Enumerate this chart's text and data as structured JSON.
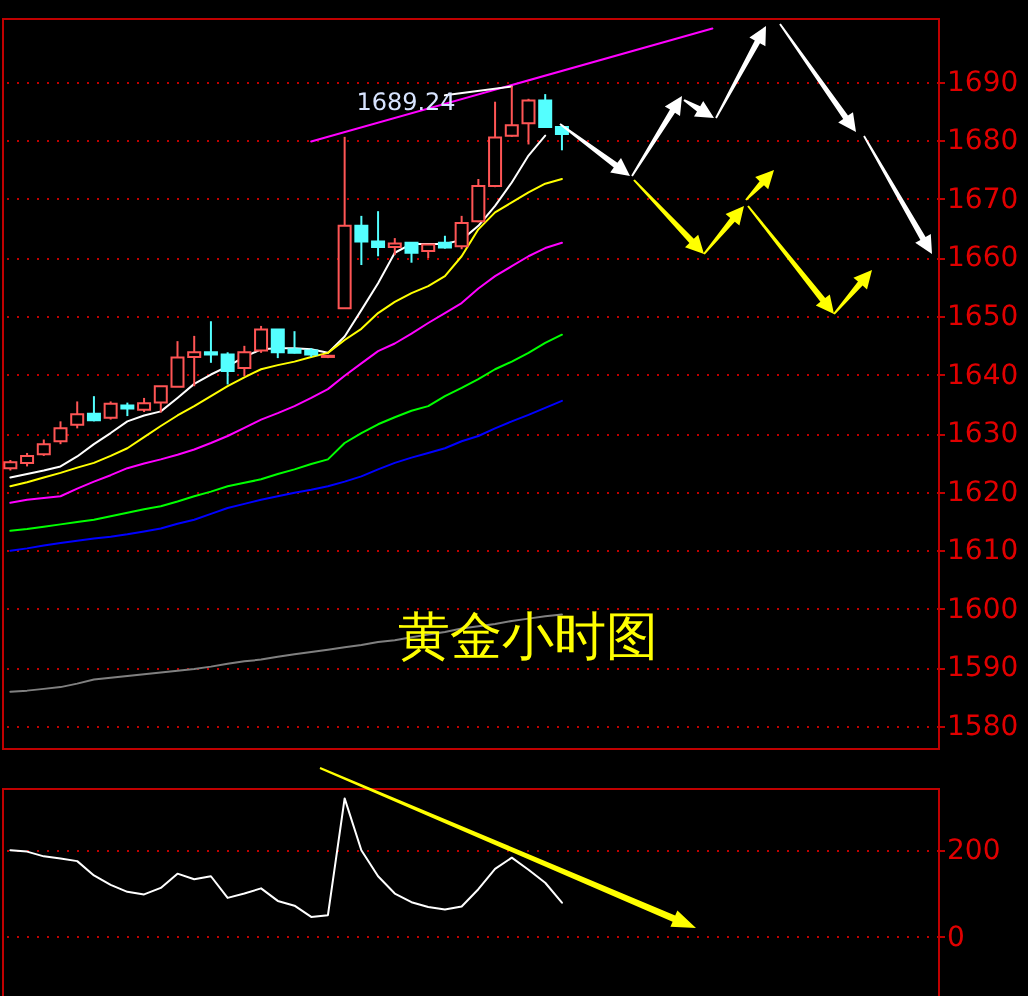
{
  "chart_data": [
    {
      "type": "candlestick",
      "title": "黄金小时图",
      "annotations": [
        "1689.24"
      ],
      "categories": [
        null,
        null,
        null,
        null,
        null,
        null,
        null,
        null,
        null,
        null,
        null,
        null,
        null,
        null,
        null,
        null,
        null,
        null,
        null,
        null,
        null,
        null,
        null,
        null,
        null,
        null,
        null,
        null,
        null,
        null,
        null,
        null,
        null,
        null,
        null,
        null,
        null,
        null,
        null,
        null,
        null,
        null,
        null,
        null,
        null,
        null,
        null,
        null,
        null,
        null,
        null,
        null,
        null,
        null,
        null,
        null
      ],
      "ohlc": [
        [
          1624.0,
          1625.4,
          1623.6,
          1625.0
        ],
        [
          1624.9,
          1626.6,
          1624.3,
          1626.1
        ],
        [
          1626.4,
          1628.9,
          1626.1,
          1628.1
        ],
        [
          1628.6,
          1632.0,
          1628.1,
          1630.8
        ],
        [
          1631.4,
          1635.4,
          1630.8,
          1633.2
        ],
        [
          1633.3,
          1636.3,
          1632.0,
          1632.2
        ],
        [
          1632.6,
          1635.4,
          1632.3,
          1635.0
        ],
        [
          1634.7,
          1635.2,
          1632.9,
          1634.2
        ],
        [
          1634.0,
          1636.0,
          1633.6,
          1635.1
        ],
        [
          1635.2,
          1638.0,
          1633.5,
          1638.0
        ],
        [
          1637.9,
          1645.7,
          1637.9,
          1642.9
        ],
        [
          1643.0,
          1646.6,
          1638.0,
          1643.8
        ],
        [
          1643.8,
          1649.1,
          1642.0,
          1643.4
        ],
        [
          1643.4,
          1643.8,
          1638.3,
          1640.6
        ],
        [
          1641.1,
          1644.9,
          1639.7,
          1643.8
        ],
        [
          1644.1,
          1648.3,
          1643.7,
          1647.7
        ],
        [
          1647.7,
          1647.7,
          1642.8,
          1643.8
        ],
        [
          1644.3,
          1647.4,
          1643.6,
          1643.7
        ],
        [
          1644.1,
          1644.5,
          1643.0,
          1643.4
        ],
        [
          1643.0,
          1643.3,
          1642.8,
          1643.2
        ],
        [
          1651.3,
          1680.6,
          1651.3,
          1665.4
        ],
        [
          1665.4,
          1667.1,
          1658.7,
          1662.7
        ],
        [
          1662.7,
          1667.9,
          1660.2,
          1661.8
        ],
        [
          1661.8,
          1663.3,
          1660.4,
          1662.4
        ],
        [
          1662.5,
          1662.5,
          1659.1,
          1660.8
        ],
        [
          1661.1,
          1662.2,
          1659.9,
          1662.2
        ],
        [
          1662.5,
          1663.7,
          1661.5,
          1661.7
        ],
        [
          1661.9,
          1667.1,
          1661.4,
          1665.9
        ],
        [
          1666.2,
          1673.4,
          1666.0,
          1672.2
        ],
        [
          1672.2,
          1686.6,
          1672.0,
          1680.5
        ],
        [
          1680.8,
          1689.24,
          1680.6,
          1682.6
        ],
        [
          1682.9,
          1687.1,
          1679.3,
          1686.8
        ],
        [
          1686.8,
          1687.9,
          1682.3,
          1682.3
        ],
        [
          1682.3,
          1682.3,
          1678.3,
          1681.1
        ],
        null,
        null,
        null,
        null,
        null,
        null,
        null,
        null,
        null,
        null,
        null,
        null,
        null,
        null,
        null,
        null,
        null,
        null,
        null,
        null,
        null,
        null
      ],
      "series": [
        {
          "type": "line",
          "color": "#ffffff",
          "values": [
            1622.4,
            1623.0,
            1623.6,
            1624.3,
            1626.0,
            1628.1,
            1630.0,
            1632.0,
            1633.0,
            1633.7,
            1636.0,
            1638.4,
            1640.0,
            1641.4,
            1643.0,
            1644.3,
            1644.5,
            1644.5,
            1644.3,
            1643.7,
            1646.5,
            1651.0,
            1655.6,
            1660.8,
            1662.3,
            1662.3,
            1662.3,
            1663.0,
            1665.4,
            1668.8,
            1672.8,
            1677.4,
            1680.8,
            null,
            null,
            null,
            null,
            null,
            null,
            null,
            null,
            null,
            null,
            null,
            null,
            null,
            null,
            null,
            null,
            null,
            null,
            null,
            null,
            null,
            null,
            null
          ]
        },
        {
          "type": "line",
          "color": "#ffff00",
          "values": [
            1620.9,
            1621.6,
            1622.4,
            1623.2,
            1624.1,
            1624.9,
            1626.1,
            1627.4,
            1629.3,
            1631.2,
            1633.0,
            1634.6,
            1636.3,
            1638.0,
            1639.5,
            1640.9,
            1641.6,
            1642.2,
            1643.0,
            1643.7,
            1645.9,
            1647.8,
            1650.5,
            1652.4,
            1653.9,
            1655.1,
            1656.8,
            1660.2,
            1664.8,
            1667.7,
            1669.4,
            1671.1,
            1672.6,
            1673.4,
            null,
            null,
            null,
            null,
            null,
            null,
            null,
            null,
            null,
            null,
            null,
            null,
            null,
            null,
            null,
            null,
            null,
            null,
            null,
            null,
            null,
            null
          ]
        },
        {
          "type": "line",
          "color": "#ff00ff",
          "values": [
            1618.1,
            1618.6,
            1618.9,
            1619.2,
            1620.5,
            1621.7,
            1622.8,
            1624.0,
            1624.8,
            1625.5,
            1626.3,
            1627.2,
            1628.3,
            1629.5,
            1630.9,
            1632.3,
            1633.4,
            1634.6,
            1636.0,
            1637.5,
            1639.8,
            1641.9,
            1644.0,
            1645.3,
            1647.0,
            1648.8,
            1650.5,
            1652.2,
            1654.7,
            1656.8,
            1658.5,
            1660.2,
            1661.6,
            1662.5,
            null,
            null,
            null,
            null,
            null,
            null,
            null,
            null,
            null,
            null,
            null,
            null,
            null,
            null,
            null,
            null,
            null,
            null,
            null,
            null,
            null,
            null
          ]
        },
        {
          "type": "line",
          "color": "#00ff00",
          "values": [
            1613.3,
            1613.6,
            1614.0,
            1614.4,
            1614.8,
            1615.2,
            1615.8,
            1616.4,
            1617.0,
            1617.5,
            1618.3,
            1619.2,
            1620.0,
            1620.9,
            1621.5,
            1622.1,
            1623.0,
            1623.8,
            1624.7,
            1625.5,
            1628.3,
            1630.0,
            1631.5,
            1632.7,
            1633.8,
            1634.6,
            1636.3,
            1637.7,
            1639.2,
            1640.9,
            1642.2,
            1643.7,
            1645.4,
            1646.8,
            null,
            null,
            null,
            null,
            null,
            null,
            null,
            null,
            null,
            null,
            null,
            null,
            null,
            null,
            null,
            null,
            null,
            null,
            null,
            null,
            null,
            null
          ]
        },
        {
          "type": "line",
          "color": "#0000ff",
          "values": [
            1609.9,
            1610.3,
            1610.8,
            1611.2,
            1611.6,
            1612.0,
            1612.3,
            1612.7,
            1613.2,
            1613.7,
            1614.5,
            1615.2,
            1616.2,
            1617.2,
            1617.9,
            1618.6,
            1619.2,
            1619.8,
            1620.3,
            1620.9,
            1621.7,
            1622.6,
            1623.8,
            1624.9,
            1625.8,
            1626.6,
            1627.4,
            1628.6,
            1629.5,
            1630.8,
            1632.0,
            1633.1,
            1634.3,
            1635.5,
            null,
            null,
            null,
            null,
            null,
            null,
            null,
            null,
            null,
            null,
            null,
            null,
            null,
            null,
            null,
            null,
            null,
            null,
            null,
            null,
            null,
            null
          ]
        },
        {
          "type": "line",
          "color": "#808080",
          "values": [
            1585.8,
            1586.0,
            1586.3,
            1586.6,
            1587.2,
            1587.9,
            1588.2,
            1588.5,
            1588.8,
            1589.1,
            1589.4,
            1589.7,
            1590.1,
            1590.6,
            1591.0,
            1591.3,
            1591.8,
            1592.2,
            1592.6,
            1593.0,
            1593.4,
            1593.8,
            1594.3,
            1594.6,
            1595.1,
            1595.6,
            1596.0,
            1596.6,
            1597.0,
            1597.4,
            1597.9,
            1598.3,
            1598.7,
            1599.0,
            null,
            null,
            null,
            null,
            null,
            null,
            null,
            null,
            null,
            null,
            null,
            null,
            null,
            null,
            null,
            null,
            null,
            null,
            null,
            null,
            null,
            null
          ]
        },
        {
          "type": "line",
          "color": "#ff00ff",
          "values": [
            null,
            null,
            null,
            null,
            null,
            null,
            null,
            null,
            null,
            null,
            null,
            null,
            null,
            null,
            null,
            null,
            null,
            null,
            1679.8,
            null,
            null,
            null,
            null,
            null,
            null,
            null,
            null,
            null,
            null,
            null,
            null,
            null,
            null,
            null,
            null,
            null,
            null,
            null,
            null,
            null,
            null,
            null,
            1699.1,
            null,
            null,
            null,
            null,
            null,
            null,
            null,
            null,
            null,
            null,
            null,
            null,
            null
          ]
        },
        {
          "type": "line",
          "color": "#ffffff",
          "values": [
            null,
            null,
            null,
            null,
            null,
            null,
            null,
            null,
            null,
            null,
            null,
            null,
            null,
            null,
            null,
            null,
            null,
            null,
            null,
            null,
            null,
            null,
            null,
            null,
            null,
            null,
            1687.7,
            null,
            null,
            null,
            1689.2,
            null,
            null,
            null,
            null,
            null,
            null,
            null,
            null,
            null,
            null,
            null,
            null,
            null,
            null,
            null,
            null,
            null,
            null,
            null,
            null,
            null,
            null,
            null,
            null,
            null
          ]
        }
      ],
      "ylim": [
        1576.2,
        1700.9
      ],
      "yticks": [
        1580,
        1590,
        1600,
        1610,
        1620,
        1630,
        1640,
        1650,
        1660,
        1670,
        1680,
        1690
      ],
      "grid": "y",
      "tick_labels": "y"
    },
    {
      "type": "line",
      "categories": [
        null,
        null,
        null,
        null,
        null,
        null,
        null,
        null,
        null,
        null,
        null,
        null,
        null,
        null,
        null,
        null,
        null,
        null,
        null,
        null,
        null,
        null,
        null,
        null,
        null,
        null,
        null,
        null,
        null,
        null,
        null,
        null,
        null,
        null,
        null,
        null,
        null,
        null,
        null,
        null,
        null,
        null,
        null,
        null,
        null,
        null,
        null,
        null,
        null,
        null,
        null,
        null,
        null,
        null,
        null,
        null
      ],
      "series": [
        {
          "color": "#ffffff",
          "values": [
            200,
            197,
            186,
            181,
            175,
            142,
            120,
            104,
            98,
            113,
            146,
            133,
            140,
            90,
            100,
            112,
            83,
            72,
            46,
            50,
            320,
            200,
            140,
            100,
            80,
            69,
            63,
            70,
            110,
            157,
            183,
            155,
            125,
            79,
            null,
            null,
            null,
            null,
            null,
            null,
            null,
            null,
            null,
            null,
            null,
            null,
            null,
            null,
            null,
            null,
            null,
            null,
            null,
            null,
            null,
            null
          ]
        }
      ],
      "ylim": [
        -146,
        344
      ],
      "yticks": [
        0,
        200
      ],
      "grid": "y",
      "tick_labels": "y"
    }
  ]
}
